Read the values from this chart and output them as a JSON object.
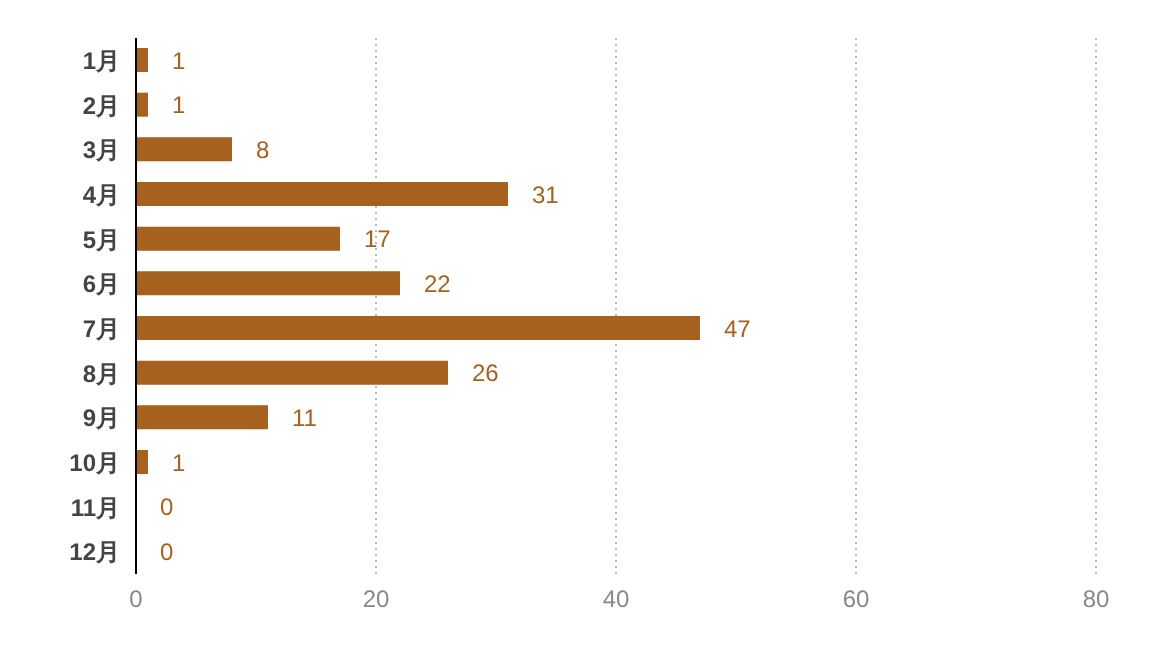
{
  "chart_data": {
    "type": "bar",
    "orientation": "horizontal",
    "categories": [
      "1月",
      "2月",
      "3月",
      "4月",
      "5月",
      "6月",
      "7月",
      "8月",
      "9月",
      "10月",
      "11月",
      "12月"
    ],
    "values": [
      1,
      1,
      8,
      31,
      17,
      22,
      47,
      26,
      11,
      1,
      0,
      0
    ],
    "color": "#a5611d",
    "xlim": [
      0,
      80
    ],
    "xticks": [
      0,
      20,
      40,
      60,
      80
    ],
    "grid": "x",
    "data_labels": true
  }
}
